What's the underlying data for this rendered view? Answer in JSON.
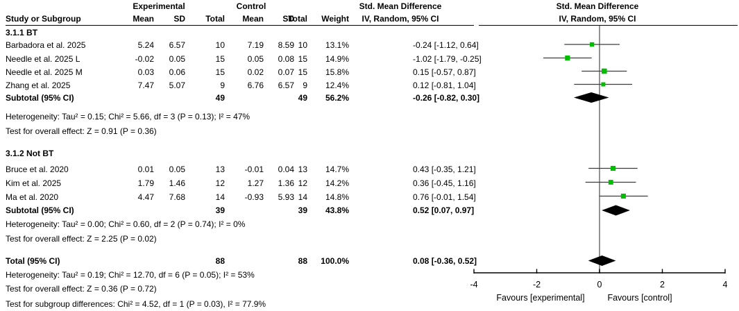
{
  "colors": {
    "marker_green": "#00bd00",
    "ci_line": "#3c3c3c",
    "diamond": "#000000",
    "zero_line": "#7a7a7a",
    "axis": "#000000",
    "text": "#000000"
  },
  "header": {
    "study_col": "Study or Subgroup",
    "experimental_group": "Experimental",
    "control_group": "Control",
    "mean_e": "Mean",
    "sd_e": "SD",
    "total_e": "Total",
    "mean_c": "Mean",
    "sd_c": "SD",
    "total_c": "Total",
    "weight": "Weight",
    "smd_text_line1": "Std. Mean Difference",
    "smd_text_line2": "IV, Random, 95% CI",
    "smd_plot_line1": "Std. Mean Difference",
    "smd_plot_line2": "IV, Random, 95% CI"
  },
  "chart_data": {
    "type": "forest",
    "effect_measure": "Std. Mean Difference (IV, Random, 95% CI)",
    "groups": [
      {
        "name": "3.1.1 BT",
        "studies": [
          {
            "name": "Barbadora et al. 2025",
            "mean_e": "5.24",
            "sd_e": "6.57",
            "n_e": "10",
            "mean_c": "7.19",
            "sd_c": "8.59",
            "n_c": "10",
            "weight": "13.1%",
            "ci_text": "-0.24 [-1.12, 0.64]",
            "est": -0.24,
            "lo": -1.12,
            "hi": 0.64
          },
          {
            "name": "Needle et al. 2025 L",
            "mean_e": "-0.02",
            "sd_e": "0.05",
            "n_e": "15",
            "mean_c": "0.05",
            "sd_c": "0.08",
            "n_c": "15",
            "weight": "14.9%",
            "ci_text": "-1.02 [-1.79, -0.25]",
            "est": -1.02,
            "lo": -1.79,
            "hi": -0.25
          },
          {
            "name": "Needle et al. 2025 M",
            "mean_e": "0.03",
            "sd_e": "0.06",
            "n_e": "15",
            "mean_c": "0.02",
            "sd_c": "0.07",
            "n_c": "15",
            "weight": "15.8%",
            "ci_text": "0.15 [-0.57, 0.87]",
            "est": 0.15,
            "lo": -0.57,
            "hi": 0.87
          },
          {
            "name": "Zhang et al. 2025",
            "mean_e": "7.47",
            "sd_e": "5.07",
            "n_e": "9",
            "mean_c": "6.76",
            "sd_c": "6.57",
            "n_c": "9",
            "weight": "12.4%",
            "ci_text": "0.12 [-0.81, 1.04]",
            "est": 0.12,
            "lo": -0.81,
            "hi": 1.04
          }
        ],
        "subtotal": {
          "label": "Subtotal (95% CI)",
          "n_e": "49",
          "n_c": "49",
          "weight": "56.2%",
          "ci_text": "-0.26 [-0.82, 0.30]",
          "est": -0.26,
          "lo": -0.82,
          "hi": 0.3
        },
        "heterogeneity": "Heterogeneity: Tau² = 0.15; Chi² = 5.66, df = 3 (P = 0.13); I² = 47%",
        "overall_effect": "Test for overall effect: Z = 0.91 (P = 0.36)"
      },
      {
        "name": "3.1.2 Not BT",
        "studies": [
          {
            "name": "Bruce et al. 2020",
            "mean_e": "0.01",
            "sd_e": "0.05",
            "n_e": "13",
            "mean_c": "-0.01",
            "sd_c": "0.04",
            "n_c": "13",
            "weight": "14.7%",
            "ci_text": "0.43 [-0.35, 1.21]",
            "est": 0.43,
            "lo": -0.35,
            "hi": 1.21
          },
          {
            "name": "Kim et al. 2025",
            "mean_e": "1.79",
            "sd_e": "1.46",
            "n_e": "12",
            "mean_c": "1.27",
            "sd_c": "1.36",
            "n_c": "12",
            "weight": "14.2%",
            "ci_text": "0.36 [-0.45, 1.16]",
            "est": 0.36,
            "lo": -0.45,
            "hi": 1.16
          },
          {
            "name": "Ma et al. 2020",
            "mean_e": "4.47",
            "sd_e": "7.68",
            "n_e": "14",
            "mean_c": "-0.93",
            "sd_c": "5.93",
            "n_c": "14",
            "weight": "14.8%",
            "ci_text": "0.76 [-0.01, 1.54]",
            "est": 0.76,
            "lo": -0.01,
            "hi": 1.54
          }
        ],
        "subtotal": {
          "label": "Subtotal (95% CI)",
          "n_e": "39",
          "n_c": "39",
          "weight": "43.8%",
          "ci_text": "0.52 [0.07, 0.97]",
          "est": 0.52,
          "lo": 0.07,
          "hi": 0.97
        },
        "heterogeneity": "Heterogeneity: Tau² = 0.00; Chi² = 0.60, df = 2 (P = 0.74); I² = 0%",
        "overall_effect": "Test for overall effect: Z = 2.25 (P = 0.02)"
      }
    ],
    "total": {
      "label": "Total (95% CI)",
      "n_e": "88",
      "n_c": "88",
      "weight": "100.0%",
      "ci_text": "0.08 [-0.36, 0.52]",
      "est": 0.08,
      "lo": -0.36,
      "hi": 0.52
    },
    "total_heterogeneity": "Heterogeneity: Tau² = 0.19; Chi² = 12.70, df = 6 (P = 0.05); I² = 53%",
    "total_overall_effect": "Test for overall effect: Z = 0.36 (P = 0.72)",
    "subgroup_differences": "Test for subgroup differences: Chi² = 4.52, df = 1 (P = 0.03), I² = 77.9%",
    "axis": {
      "min": -4,
      "max": 4,
      "ticks": [
        "-4",
        "-2",
        "0",
        "2",
        "4"
      ],
      "favours_left": "Favours [experimental]",
      "favours_right": "Favours [control]"
    }
  }
}
